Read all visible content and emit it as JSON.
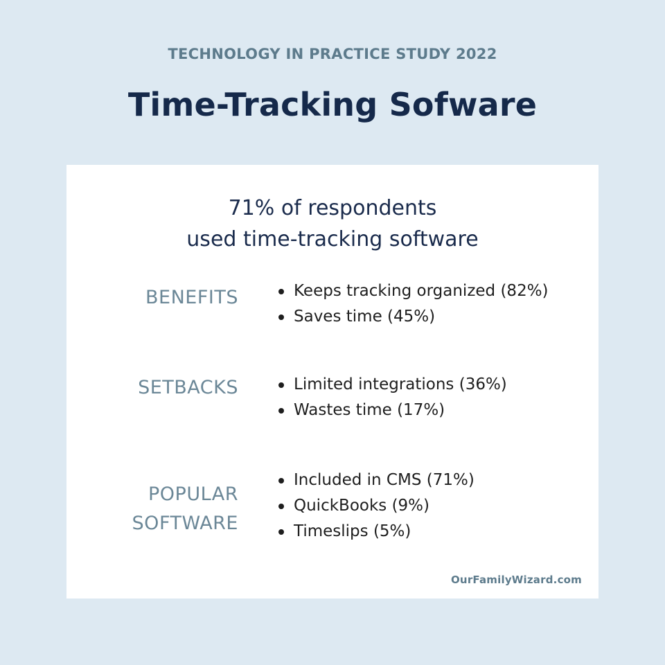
{
  "header": {
    "kicker": "TECHNOLOGY IN PRACTICE STUDY 2022",
    "title": "Time-Tracking Sofware"
  },
  "card": {
    "stat_line1": "71% of respondents",
    "stat_line2": "used time-tracking software",
    "sections": [
      {
        "label_lines": [
          "BENEFITS"
        ],
        "items": [
          "Keeps tracking organized (82%)",
          "Saves time (45%)"
        ]
      },
      {
        "label_lines": [
          "SETBACKS"
        ],
        "items": [
          "Limited integrations (36%)",
          "Wastes time (17%)"
        ]
      },
      {
        "label_lines": [
          "POPULAR",
          "SOFTWARE"
        ],
        "items": [
          "Included in CMS (71%)",
          "QuickBooks (9%)",
          "Timeslips (5%)"
        ]
      }
    ],
    "credit": "OurFamilyWizard.com"
  },
  "colors": {
    "background": "#dde9f2",
    "card": "#ffffff",
    "title": "#15294a",
    "label": "#6b8797"
  }
}
